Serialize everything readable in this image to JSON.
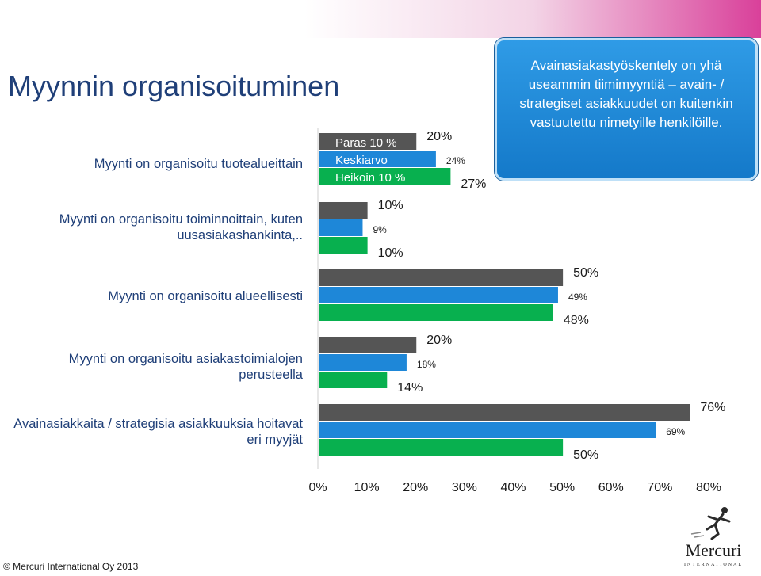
{
  "title": "Myynnin organisoituminen",
  "callout": {
    "text": "Avainasiakastyöskentely on yhä useammin tiimimyyntiä – avain- / strategiset asiakkuudet on kuitenkin vastuutettu nimetyille henkilöille."
  },
  "footer": {
    "copyright": "© Mercuri International Oy 2013"
  },
  "logo": {
    "name": "Mercuri",
    "subtitle": "INTERNATIONAL"
  },
  "chart_data": {
    "type": "bar",
    "orientation": "horizontal",
    "title": "",
    "xlabel": "",
    "ylabel": "",
    "xlim": [
      0,
      80
    ],
    "x_ticks": [
      "0%",
      "10%",
      "20%",
      "30%",
      "40%",
      "50%",
      "60%",
      "70%",
      "80%"
    ],
    "grid": false,
    "legend_position": "inside-first-category",
    "categories": [
      "Myynti on organisoitu tuotealueittain",
      "Myynti on organisoitu toiminnoittain, kuten uusasiakashankinta,..",
      "Myynti on organisoitu alueellisesti",
      "Myynti on organisoitu asiakastoimialojen perusteella",
      "Avainasiakkaita / strategisia asiakkuuksia hoitavat eri myyjät"
    ],
    "series": [
      {
        "name": "Paras 10 %",
        "color": "#555555",
        "values": [
          20,
          10,
          50,
          20,
          76
        ]
      },
      {
        "name": "Keskiarvo",
        "color": "#1e87d8",
        "values": [
          24,
          9,
          49,
          18,
          69
        ]
      },
      {
        "name": "Heikoin 10 %",
        "color": "#08b04f",
        "values": [
          27,
          10,
          48,
          14,
          50
        ]
      }
    ],
    "value_labels": [
      [
        "20%",
        "10%",
        "50%",
        "20%",
        "76%"
      ],
      [
        "24%",
        "9%",
        "49%",
        "18%",
        "69%"
      ],
      [
        "27%",
        "10%",
        "48%",
        "14%",
        "50%"
      ]
    ]
  }
}
